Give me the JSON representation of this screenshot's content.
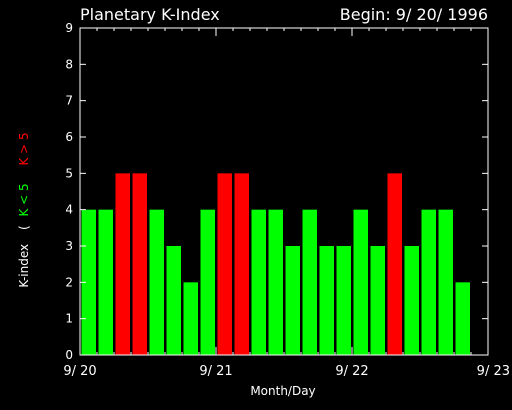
{
  "chart_data": {
    "type": "bar",
    "title": "Planetary K-Index",
    "subtitle": "Begin: 9/ 20/ 1996",
    "xlabel": "Month/Day",
    "ylabel_parts": {
      "prefix": "K-index",
      "open_paren": "(",
      "low": "K < 5",
      "high": "K > 5"
    },
    "ylim": [
      0,
      9
    ],
    "y_ticks": [
      "0",
      "1",
      "2",
      "3",
      "4",
      "5",
      "6",
      "7",
      "8",
      "9"
    ],
    "x_ticks": [
      "9/ 20",
      "9/ 21",
      "9/ 22",
      "9/ 23"
    ],
    "x_tick_positions": [
      0,
      8,
      16,
      24
    ],
    "values": [
      4,
      4,
      5,
      5,
      4,
      3,
      2,
      4,
      5,
      5,
      4,
      4,
      3,
      4,
      3,
      3,
      4,
      3,
      5,
      3,
      4,
      4,
      2
    ],
    "colors": {
      "low": "#00ff00",
      "high": "#ff0000",
      "axis": "#ffffff",
      "background": "#000000"
    },
    "threshold": 5
  }
}
